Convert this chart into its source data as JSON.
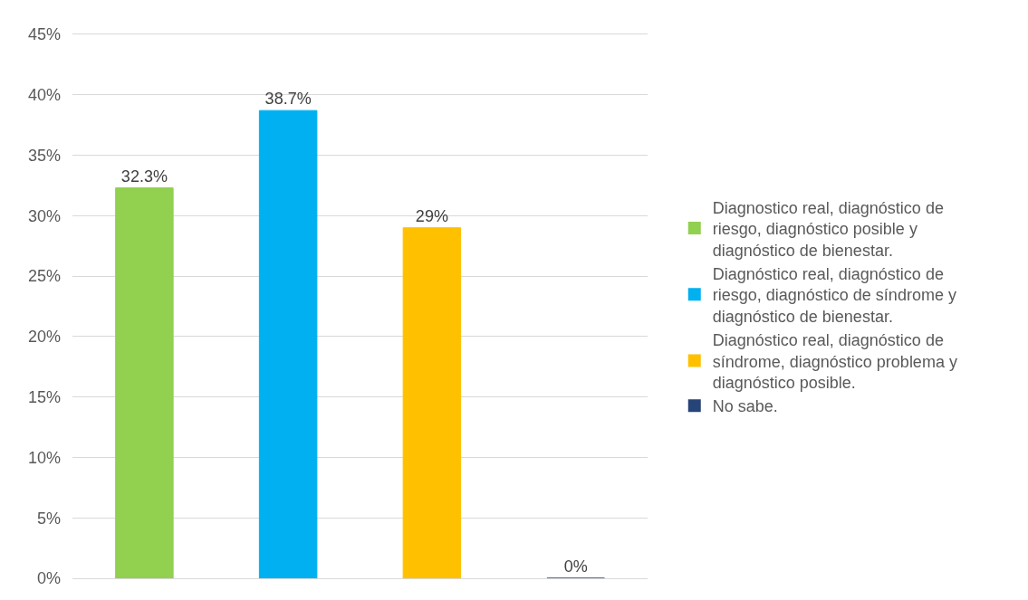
{
  "chart_data": {
    "type": "bar",
    "categories": [
      null,
      null,
      null,
      null
    ],
    "series": [
      {
        "name": "Diagnostico real, diagnóstico de riesgo, diagnóstico posible y diagnóstico de bienestar.",
        "color": "#92d050",
        "values": [
          32.3,
          null,
          null,
          null
        ],
        "value_labels": [
          "32.3%",
          null,
          null,
          null
        ]
      },
      {
        "name": "Diagnóstico real, diagnóstico de riesgo, diagnóstico de síndrome y diagnóstico de bienestar.",
        "color": "#00b0f0",
        "values": [
          null,
          38.7,
          null,
          null
        ],
        "value_labels": [
          null,
          "38.7%",
          null,
          null
        ]
      },
      {
        "name": "Diagnóstico real, diagnóstico de síndrome, diagnóstico problema y diagnóstico posible.",
        "color": "#ffc000",
        "values": [
          null,
          null,
          29,
          null
        ],
        "value_labels": [
          null,
          null,
          "29%",
          null
        ]
      },
      {
        "name": "No sabe.",
        "color": "#264478",
        "values": [
          null,
          null,
          null,
          0
        ],
        "value_labels": [
          null,
          null,
          null,
          "0%"
        ]
      }
    ],
    "ylim": [
      0,
      45
    ],
    "yticks": [
      {
        "value": 0,
        "label": "0%"
      },
      {
        "value": 5,
        "label": "5%"
      },
      {
        "value": 10,
        "label": "10%"
      },
      {
        "value": 15,
        "label": "15%"
      },
      {
        "value": 20,
        "label": "20%"
      },
      {
        "value": 25,
        "label": "25%"
      },
      {
        "value": 30,
        "label": "30%"
      },
      {
        "value": 35,
        "label": "35%"
      },
      {
        "value": 40,
        "label": "40%"
      },
      {
        "value": 45,
        "label": "45%"
      }
    ],
    "grid": "y",
    "legend": "right",
    "tick_labels": "y"
  }
}
